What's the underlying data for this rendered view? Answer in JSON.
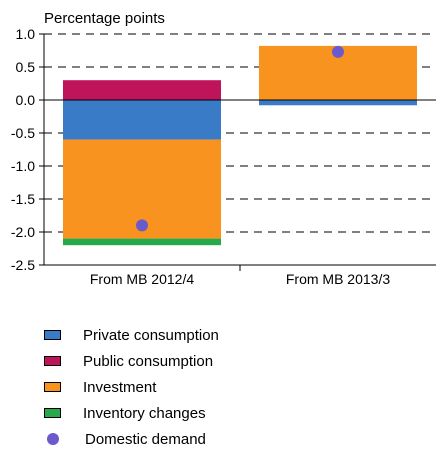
{
  "chart_data": {
    "type": "bar",
    "stacked": true,
    "ylabel": "Percentage points",
    "categories": [
      "From MB 2012/4",
      "From MB 2013/3"
    ],
    "ylim": [
      -2.5,
      1.0
    ],
    "yticks": [
      "1.0",
      "0.5",
      "0.0",
      "-0.5",
      "-1.0",
      "-1.5",
      "-2.0",
      "-2.5"
    ],
    "grid": "dashed",
    "legend_position": "bottom",
    "series": [
      {
        "name": "Private consumption",
        "color": "#3a7bc8",
        "values": [
          -0.6,
          -0.08
        ]
      },
      {
        "name": "Public consumption",
        "color": "#c0145a",
        "values": [
          0.3,
          0.0
        ]
      },
      {
        "name": "Investment",
        "color": "#f7931e",
        "values": [
          -1.5,
          0.82
        ]
      },
      {
        "name": "Inventory changes",
        "color": "#27a84a",
        "values": [
          -0.1,
          0.0
        ]
      }
    ],
    "markers": {
      "name": "Domestic demand",
      "color": "#6a5acd",
      "values": [
        -1.9,
        0.73
      ]
    }
  }
}
